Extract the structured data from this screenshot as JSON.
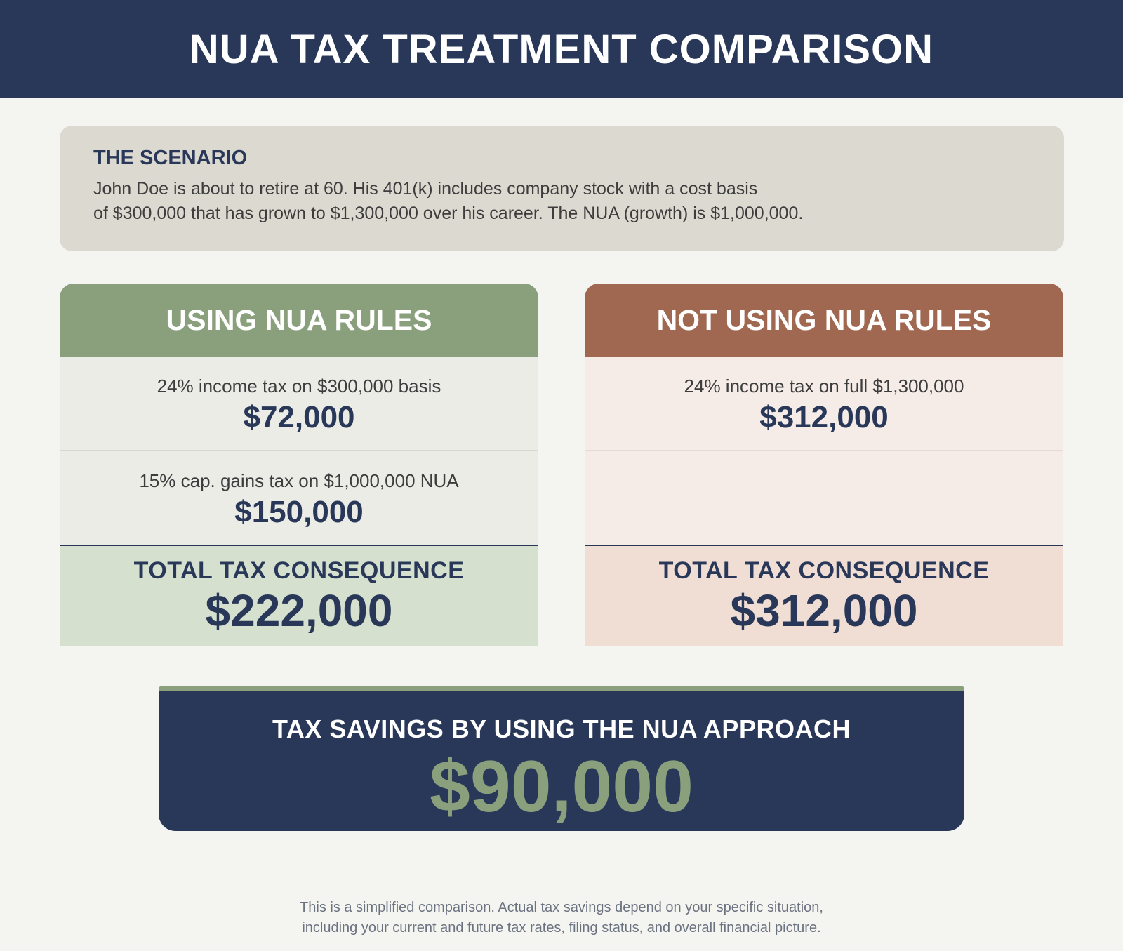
{
  "header": {
    "title": "NUA TAX TREATMENT COMPARISON"
  },
  "scenario": {
    "title": "THE SCENARIO",
    "lines": [
      "John Doe is about to retire at 60. His 401(k) includes company stock with a cost basis",
      "of $300,000 that has grown to $1,300,000 over his career. The NUA (growth) is $1,000,000."
    ]
  },
  "using_nua": {
    "title": "USING NUA RULES",
    "rows": [
      {
        "description": "24% income tax on $300,000 basis",
        "amount": "$72,000"
      },
      {
        "description": "15% cap. gains tax on $1,000,000 NUA",
        "amount": "$150,000"
      }
    ],
    "total_label": "TOTAL TAX CONSEQUENCE",
    "total_amount": "$222,000"
  },
  "not_using_nua": {
    "title": "NOT USING NUA RULES",
    "rows": [
      {
        "description": "24% income tax on full $1,300,000",
        "amount": "$312,000"
      }
    ],
    "total_label": "TOTAL TAX CONSEQUENCE",
    "total_amount": "$312,000"
  },
  "savings": {
    "label": "TAX SAVINGS BY USING THE NUA APPROACH",
    "amount": "$90,000"
  },
  "footer": {
    "lines": [
      "This is a simplified comparison. Actual tax savings depend on your specific situation,",
      "including your current and future tax rates, filing status, and overall financial picture."
    ]
  },
  "colors": {
    "navy": "#293858",
    "sage": "#8aa07d",
    "terracotta": "#a06850",
    "background": "#f4f4f0"
  }
}
